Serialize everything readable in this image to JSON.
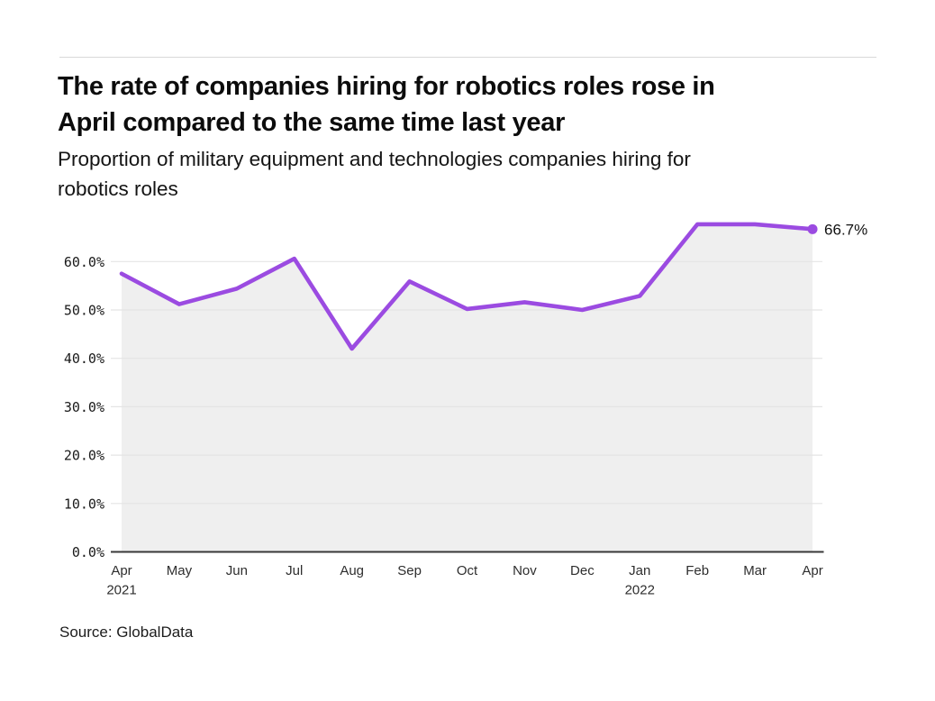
{
  "header": {
    "title_line1": "The rate of companies hiring for robotics roles rose in",
    "title_line2": "April compared to the same time last year",
    "subtitle_line1": "Proportion of military equipment and technologies companies hiring for",
    "subtitle_line2": "robotics roles"
  },
  "footer": {
    "source": "Source: GlobalData"
  },
  "chart_data": {
    "type": "line",
    "title": "The rate of companies hiring for robotics roles rose in April compared to the same time last year",
    "subtitle": "Proportion of military equipment and technologies companies hiring for robotics roles",
    "categories": [
      "Apr",
      "May",
      "Jun",
      "Jul",
      "Aug",
      "Sep",
      "Oct",
      "Nov",
      "Dec",
      "Jan",
      "Feb",
      "Mar",
      "Apr"
    ],
    "year_labels": [
      {
        "index": 0,
        "label": "2021"
      },
      {
        "index": 9,
        "label": "2022"
      }
    ],
    "series": [
      {
        "name": "Proportion of companies hiring for robotics roles",
        "values": [
          57.5,
          51.2,
          54.4,
          60.6,
          42.0,
          55.9,
          50.2,
          51.6,
          50.0,
          52.9,
          67.7,
          67.7,
          66.7
        ]
      }
    ],
    "end_label": "66.7%",
    "y_ticks": [
      {
        "value": 0,
        "label": "0.0%"
      },
      {
        "value": 10,
        "label": "10.0%"
      },
      {
        "value": 20,
        "label": "20.0%"
      },
      {
        "value": 30,
        "label": "30.0%"
      },
      {
        "value": 40,
        "label": "40.0%"
      },
      {
        "value": 50,
        "label": "50.0%"
      },
      {
        "value": 60,
        "label": "60.0%"
      }
    ],
    "ylim": [
      0,
      71
    ],
    "grid": true,
    "legend": "none",
    "colors": {
      "line": "#9b4be1",
      "area_fill": "#efefef",
      "gridline": "#e4e4e4",
      "axis": "#383838",
      "tick_text": "#1a1a1a",
      "x_text": "#2e2e2e",
      "end_label_text": "#111111"
    }
  }
}
